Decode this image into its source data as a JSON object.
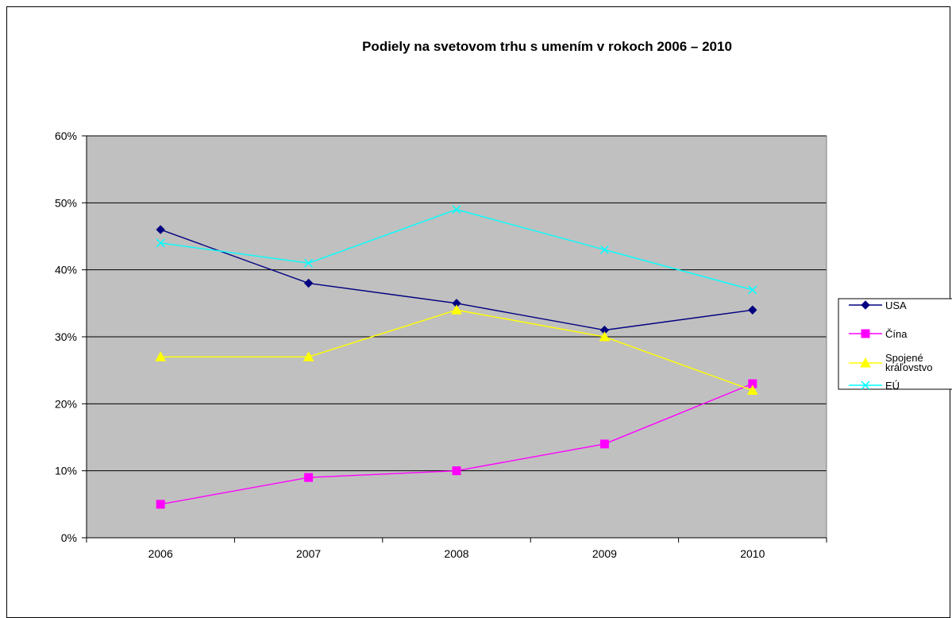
{
  "chart_data": {
    "type": "line",
    "title": "Podiely na svetovom trhu s umením v rokoch 2006 – 2010",
    "categories": [
      "2006",
      "2007",
      "2008",
      "2009",
      "2010"
    ],
    "y_ticks": [
      "0%",
      "10%",
      "20%",
      "30%",
      "40%",
      "50%",
      "60%"
    ],
    "ylim": [
      0,
      60
    ],
    "y_unit": "%",
    "grid": true,
    "legend_position": "right",
    "plot_background": "#c0c0c0",
    "series": [
      {
        "name": "USA",
        "values": [
          46,
          38,
          35,
          31,
          34
        ],
        "color": "#000080",
        "marker": "diamond"
      },
      {
        "name": "Čína",
        "values": [
          5,
          9,
          10,
          14,
          23
        ],
        "color": "#ff00ff",
        "marker": "square"
      },
      {
        "name": "Spojené kráľovstvo",
        "name_lines": [
          "Spojené",
          "kráľovstvo"
        ],
        "values": [
          27,
          27,
          34,
          30,
          22
        ],
        "color": "#ffff00",
        "marker": "triangle"
      },
      {
        "name": "EÚ",
        "values": [
          44,
          41,
          49,
          43,
          37
        ],
        "color": "#00ffff",
        "marker": "x"
      }
    ]
  }
}
